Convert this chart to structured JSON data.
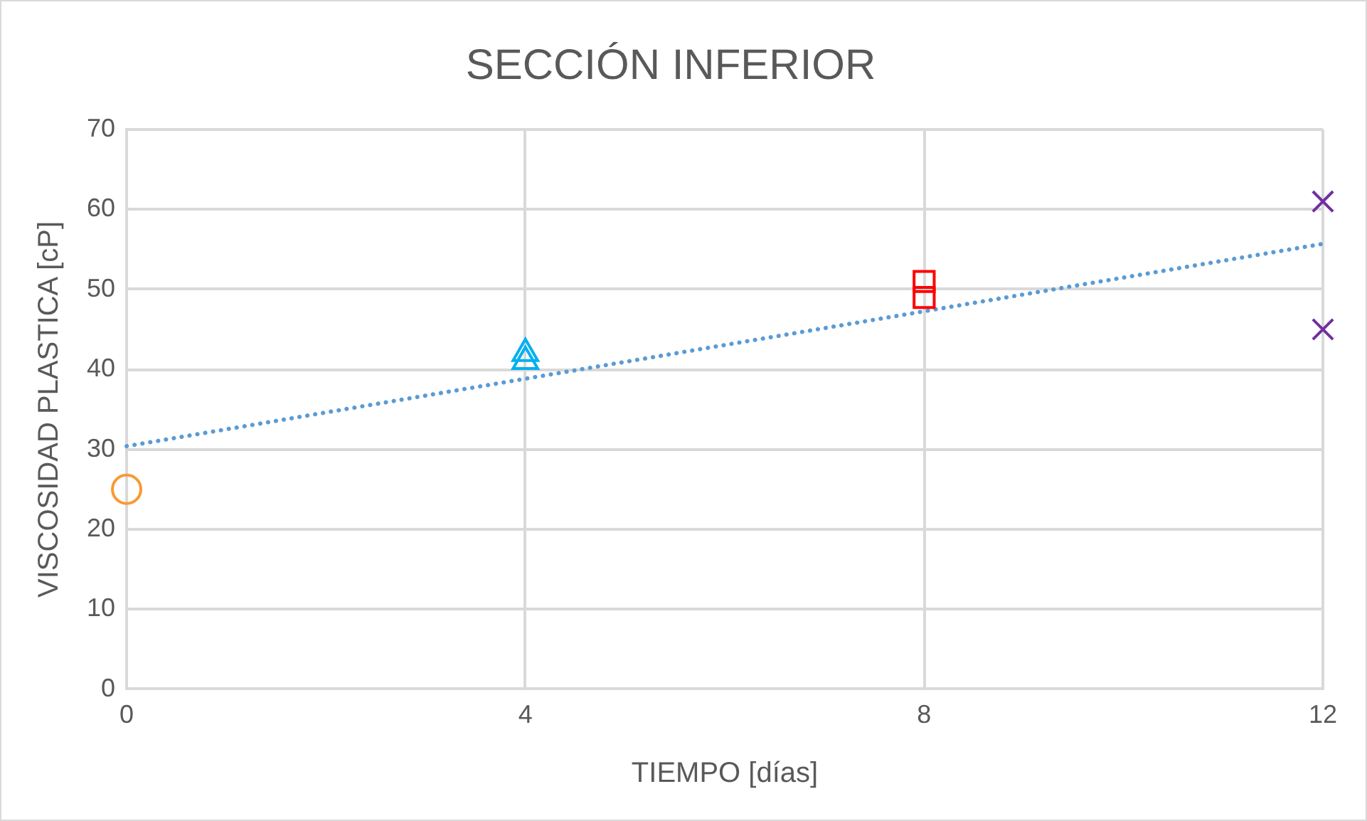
{
  "chart_data": {
    "type": "scatter",
    "title": "SECCIÓN INFERIOR",
    "xlabel": "TIEMPO [días]",
    "ylabel": "VISCOSIDAD PLASTICA [cP]",
    "xlim": [
      0,
      12
    ],
    "xticks": [
      0,
      4,
      8,
      12
    ],
    "ylim": [
      0,
      70
    ],
    "yticks": [
      0,
      10,
      20,
      30,
      40,
      50,
      60,
      70
    ],
    "grid": true,
    "series": [
      {
        "marker": "circle",
        "color": "#f79a34",
        "x": [
          0
        ],
        "values": [
          25
        ]
      },
      {
        "marker": "triangle",
        "color": "#00b0f0",
        "x": [
          4,
          4
        ],
        "values": [
          41,
          42
        ]
      },
      {
        "marker": "square",
        "color": "#ff0000",
        "x": [
          8,
          8
        ],
        "values": [
          49,
          51
        ]
      },
      {
        "marker": "cross",
        "color": "#7030a0",
        "x": [
          12,
          12
        ],
        "values": [
          45,
          61
        ]
      },
      {
        "type": "line",
        "line_style": "dotted",
        "marker": "none",
        "color": "#5b9bd5",
        "x": [
          0,
          12
        ],
        "values": [
          30.4,
          55.7
        ]
      }
    ]
  }
}
